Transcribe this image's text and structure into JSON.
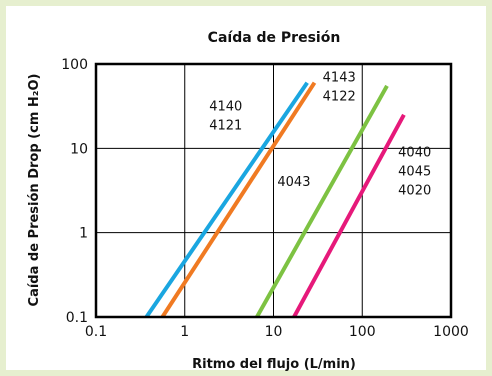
{
  "chart_data": {
    "type": "line",
    "title": "Caída de Presión",
    "xlabel": "Ritmo del flujo (L/min)",
    "ylabel": "Caída de Presión Drop (cm H₂O)",
    "x_scale": "log",
    "y_scale": "log",
    "xlim": [
      0.1,
      1000
    ],
    "ylim": [
      0.1,
      100
    ],
    "x_ticks": [
      "0.1",
      "1",
      "10",
      "100",
      "1000"
    ],
    "y_ticks": [
      "0.1",
      "1",
      "10",
      "100"
    ],
    "grid": true,
    "series": [
      {
        "color": "#1aa6e0",
        "points": [
          [
            0.37,
            0.1
          ],
          [
            24,
            60
          ]
        ]
      },
      {
        "color": "#f07a22",
        "points": [
          [
            0.56,
            0.1
          ],
          [
            29,
            60
          ]
        ]
      },
      {
        "color": "#7dc242",
        "points": [
          [
            6.5,
            0.1
          ],
          [
            190,
            55
          ]
        ]
      },
      {
        "color": "#e6197a",
        "points": [
          [
            17,
            0.1
          ],
          [
            295,
            25
          ]
        ]
      }
    ],
    "annotations": [
      {
        "lines": [
          "4140",
          "4121"
        ],
        "x": 2.9,
        "y": 28
      },
      {
        "lines": [
          "4143",
          "4122"
        ],
        "x": 55,
        "y": 62
      },
      {
        "lines": [
          "4043"
        ],
        "x": 17,
        "y": 3.6
      },
      {
        "lines": [
          "4040",
          "4045",
          "4020"
        ],
        "x": 390,
        "y": 8
      }
    ]
  }
}
